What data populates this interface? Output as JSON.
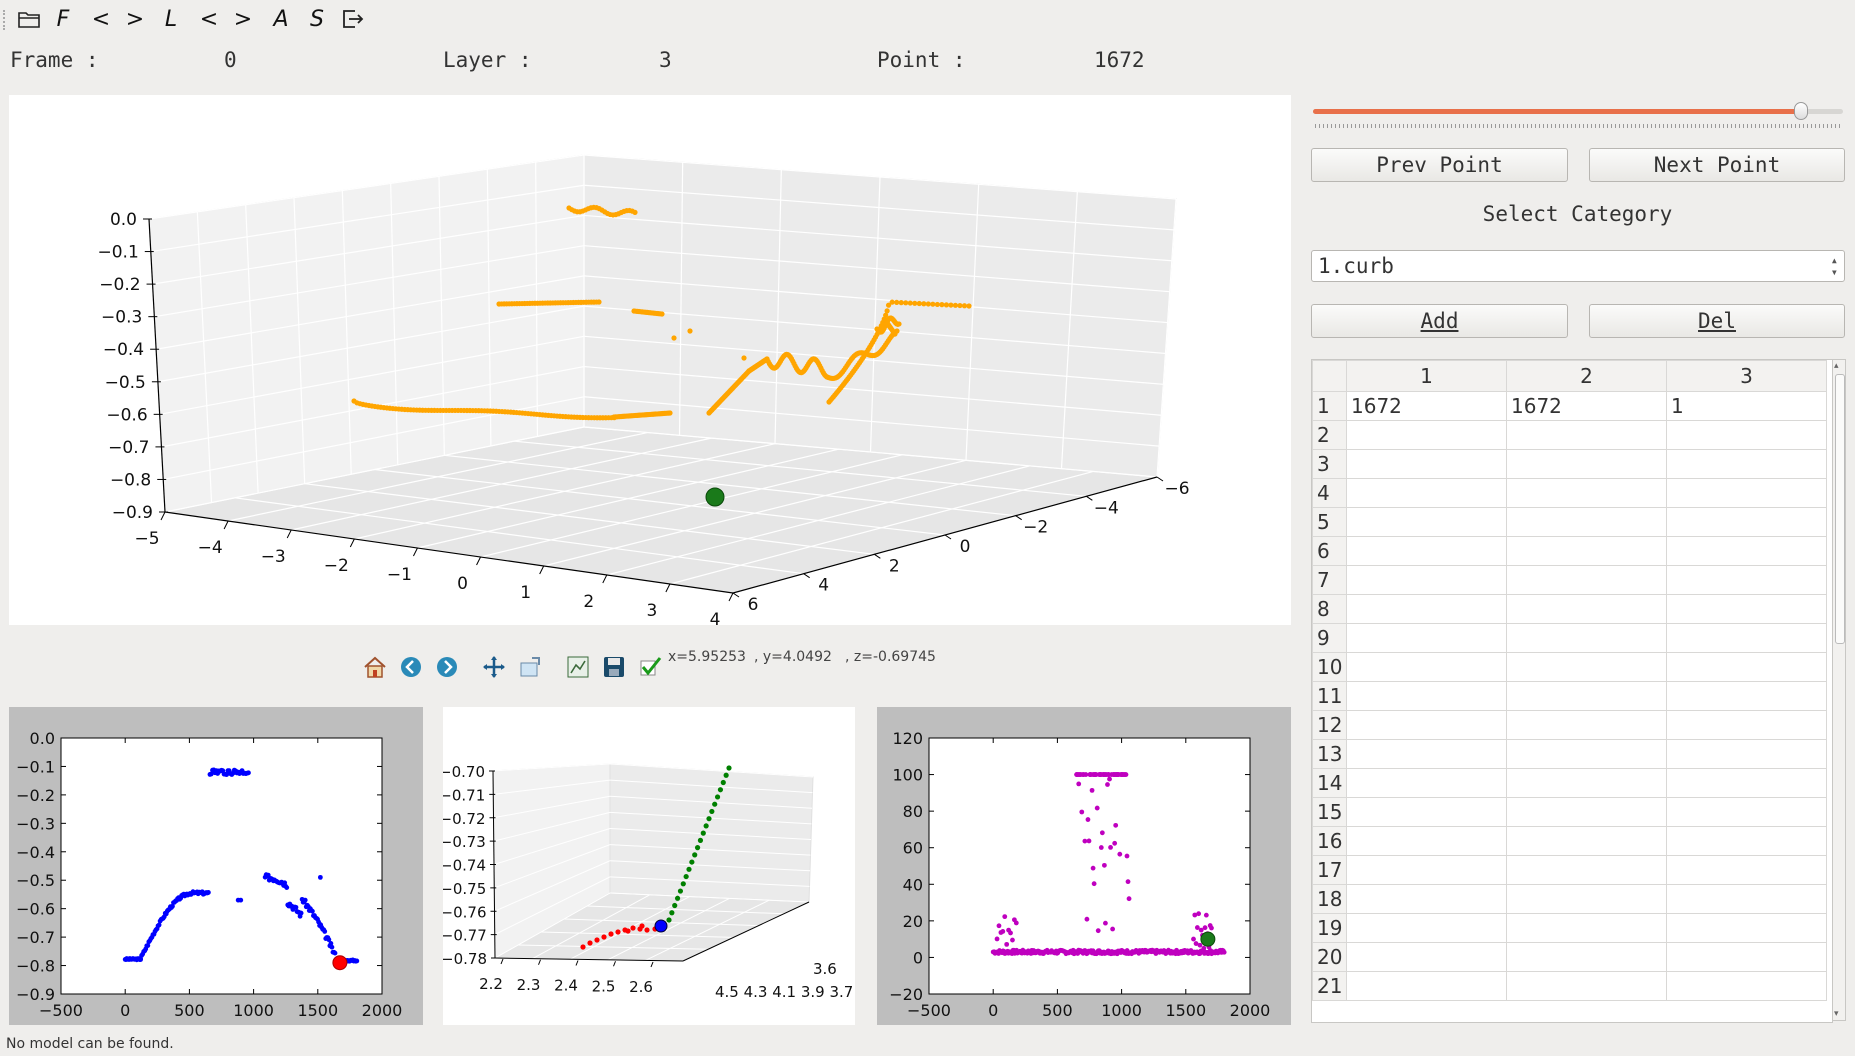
{
  "toolbar": {
    "items": [
      {
        "name": "open-folder-icon"
      },
      {
        "name": "frame-tool-button",
        "glyph": "F"
      },
      {
        "name": "prev-frame-button",
        "glyph": "<"
      },
      {
        "name": "next-frame-button",
        "glyph": ">"
      },
      {
        "name": "layer-tool-button",
        "glyph": "L"
      },
      {
        "name": "prev-layer-button",
        "glyph": "<"
      },
      {
        "name": "next-layer-button",
        "glyph": ">"
      },
      {
        "name": "add-tool-button",
        "glyph": "A"
      },
      {
        "name": "save-tool-button",
        "glyph": "S"
      },
      {
        "name": "exit-icon"
      }
    ]
  },
  "info": {
    "frame_label": "Frame :",
    "frame_value": "0",
    "layer_label": "Layer :",
    "layer_value": "3",
    "point_label": "Point :",
    "point_value": "1672"
  },
  "main_plot": {
    "z_ticks": [
      "0.0",
      "−0.1",
      "−0.2",
      "−0.3",
      "−0.4",
      "−0.5",
      "−0.6",
      "−0.7",
      "−0.8",
      "−0.9"
    ],
    "x_ticks": [
      "−5",
      "−4",
      "−3",
      "−2",
      "−1",
      "0",
      "1",
      "2",
      "3",
      "4"
    ],
    "y_ticks": [
      "6",
      "4",
      "2",
      "0",
      "−2",
      "−4",
      "−6"
    ],
    "point_color": "#ffa500",
    "marker_color": "#1a7a1a"
  },
  "navbar": {
    "icons": [
      "home-icon",
      "back-icon",
      "forward-icon",
      "pan-icon",
      "zoom-icon",
      "configure-subplots-icon",
      "save-figure-icon",
      "check-icon"
    ],
    "coord_x": "x=5.95253",
    "coord_y": ", y=4.0492",
    "coord_z": ", z=-0.69745"
  },
  "chart_data": [
    {
      "type": "scatter",
      "series": [
        {
          "values": []
        }
      ],
      "x_ticks": [
        "−500",
        "0",
        "500",
        "1000",
        "1500",
        "2000"
      ],
      "y_ticks": [
        "0.0",
        "−0.1",
        "−0.2",
        "−0.3",
        "−0.4",
        "−0.5",
        "−0.6",
        "−0.7",
        "−0.8",
        "−0.9"
      ],
      "xlim": [
        -500,
        2000
      ],
      "ylim": [
        -0.9,
        0.0
      ],
      "color": "#0000ff",
      "marker": {
        "x": 1672,
        "y": -0.79,
        "color": "#ff0000"
      }
    },
    {
      "type": "scatter",
      "z_ticks": [
        "−0.70",
        "−0.71",
        "−0.72",
        "−0.73",
        "−0.74",
        "−0.75",
        "−0.76",
        "−0.77",
        "−0.78"
      ],
      "x_ticks": [
        "2.2",
        "2.3",
        "2.4",
        "2.5",
        "2.6"
      ],
      "y_ticks": "4.5 4.3 4.1 3.9 3.7",
      "y_ticks_end": "3.6",
      "colors": [
        "#ff0000",
        "#008000",
        "#0000ff"
      ]
    },
    {
      "type": "scatter",
      "x_ticks": [
        "−500",
        "0",
        "500",
        "1000",
        "1500",
        "2000"
      ],
      "y_ticks": [
        "120",
        "100",
        "80",
        "60",
        "40",
        "20",
        "0",
        "−20"
      ],
      "xlim": [
        -500,
        2000
      ],
      "ylim": [
        -20,
        120
      ],
      "color": "#bf00bf",
      "marker": {
        "x": 1672,
        "y": 10,
        "color": "#1a7a1a"
      }
    }
  ],
  "side": {
    "slider_value": 0.92,
    "prev_label": "Prev Point",
    "next_label": "Next Point",
    "select_label": "Select Category",
    "category_value": "1.curb",
    "add_label": "Add",
    "del_label": "Del",
    "table": {
      "columns": [
        "1",
        "2",
        "3"
      ],
      "rows": [
        "1",
        "2",
        "3",
        "4",
        "5",
        "6",
        "7",
        "8",
        "9",
        "10",
        "11",
        "12",
        "13",
        "14",
        "15",
        "16",
        "17",
        "18",
        "19",
        "20",
        "21"
      ],
      "cells": [
        [
          "1672",
          "1672",
          "1"
        ]
      ]
    }
  },
  "status": "No model can be found."
}
